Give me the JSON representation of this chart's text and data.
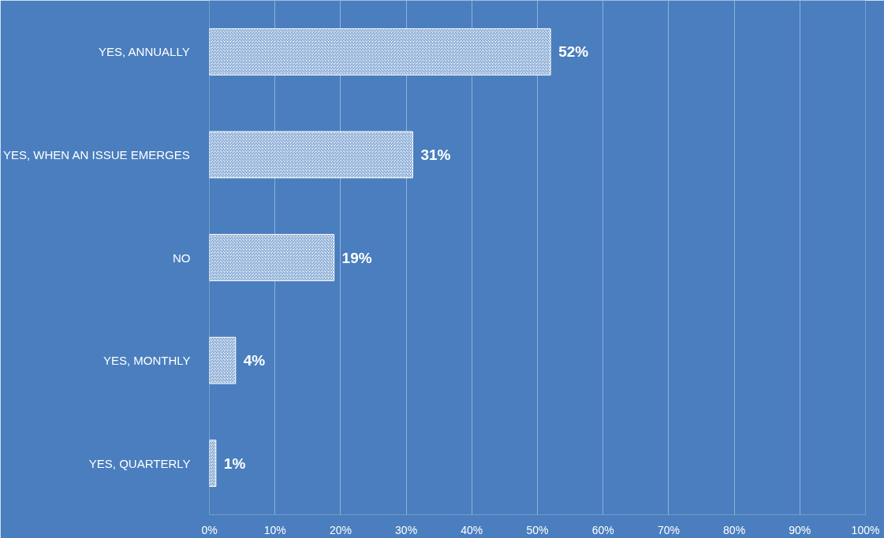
{
  "chart_data": {
    "type": "bar",
    "orientation": "horizontal",
    "categories": [
      "YES, ANNUALLY",
      "YES, WHEN AN ISSUE EMERGES",
      "NO",
      "YES, MONTHLY",
      "YES, QUARTERLY"
    ],
    "values": [
      52,
      31,
      19,
      4,
      1
    ],
    "value_labels": [
      "52%",
      "31%",
      "19%",
      "4%",
      "1%"
    ],
    "color": "#ffffff",
    "xlim": [
      0,
      100
    ],
    "xticks": [
      {
        "value": 0,
        "label": "0%"
      },
      {
        "value": 10,
        "label": "10%"
      },
      {
        "value": 20,
        "label": "20%"
      },
      {
        "value": 30,
        "label": "30%"
      },
      {
        "value": 40,
        "label": "40%"
      },
      {
        "value": 50,
        "label": "50%"
      },
      {
        "value": 60,
        "label": "60%"
      },
      {
        "value": 70,
        "label": "70%"
      },
      {
        "value": 80,
        "label": "80%"
      },
      {
        "value": 90,
        "label": "90%"
      },
      {
        "value": 100,
        "label": "100%"
      }
    ],
    "grid": "x"
  }
}
